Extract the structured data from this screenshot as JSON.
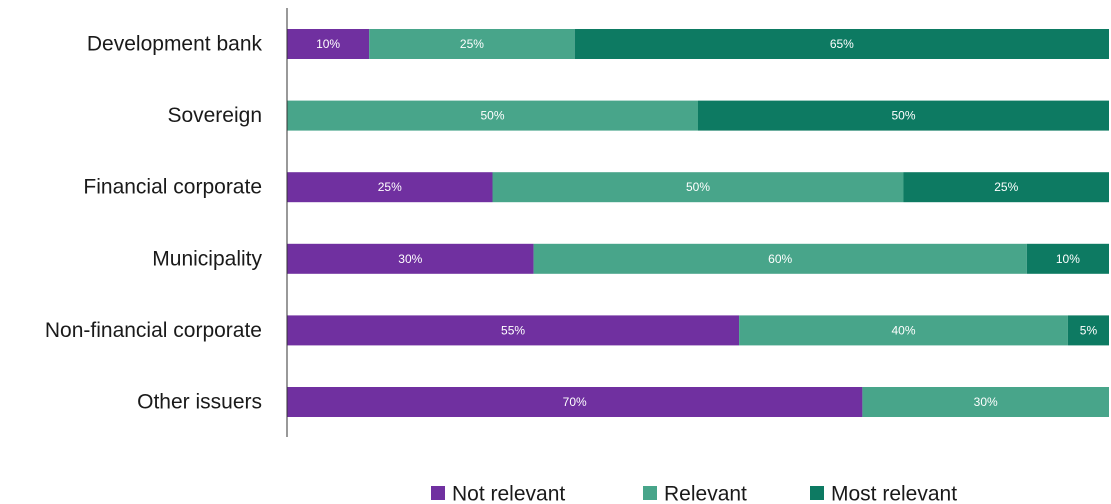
{
  "chart_data": {
    "type": "bar",
    "orientation": "horizontal",
    "stacked": true,
    "categories": [
      "Development bank",
      "Sovereign",
      "Financial corporate",
      "Municipality",
      "Non-financial corporate",
      "Other issuers"
    ],
    "series": [
      {
        "name": "Not relevant",
        "color": "#7030a0",
        "values": [
          10,
          0,
          25,
          30,
          55,
          70
        ]
      },
      {
        "name": "Relevant",
        "color": "#48a58a",
        "values": [
          25,
          50,
          50,
          60,
          40,
          30
        ]
      },
      {
        "name": "Most relevant",
        "color": "#0d7a62",
        "values": [
          65,
          50,
          25,
          10,
          5,
          0
        ]
      }
    ],
    "value_format": "percent",
    "xlim": [
      0,
      100
    ],
    "grid": false,
    "legend_position": "bottom",
    "title": "",
    "xlabel": "",
    "ylabel": ""
  }
}
